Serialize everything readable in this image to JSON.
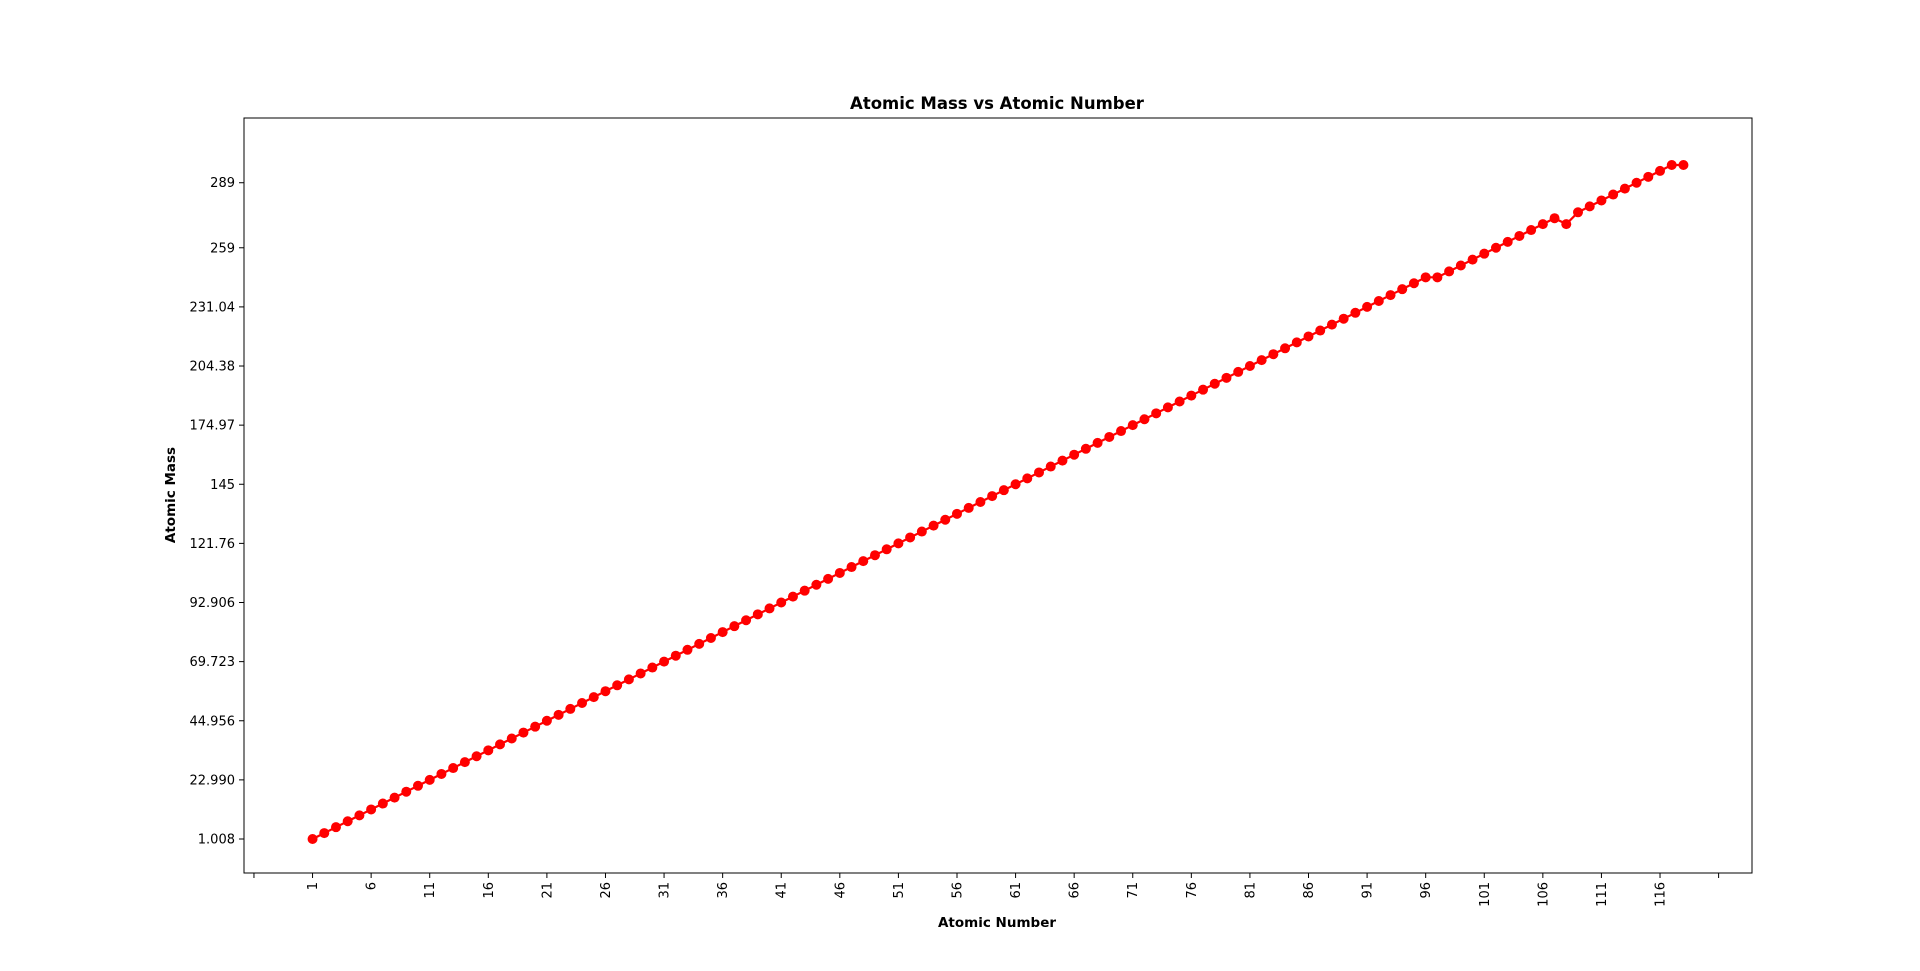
{
  "chart_data": {
    "type": "line",
    "title": "Atomic Mass vs Atomic Number",
    "xlabel": "Atomic Number",
    "ylabel": "Atomic Mass",
    "marker": "circle",
    "color": "#ff0000",
    "grid": false,
    "x": [
      1,
      2,
      3,
      4,
      5,
      6,
      7,
      8,
      9,
      10,
      11,
      12,
      13,
      14,
      15,
      16,
      17,
      18,
      19,
      20,
      21,
      22,
      23,
      24,
      25,
      26,
      27,
      28,
      29,
      30,
      31,
      32,
      33,
      34,
      35,
      36,
      37,
      38,
      39,
      40,
      41,
      42,
      43,
      44,
      45,
      46,
      47,
      48,
      49,
      50,
      51,
      52,
      53,
      54,
      55,
      56,
      57,
      58,
      59,
      60,
      61,
      62,
      63,
      64,
      65,
      66,
      67,
      68,
      69,
      70,
      71,
      72,
      73,
      74,
      75,
      76,
      77,
      78,
      79,
      80,
      81,
      82,
      83,
      84,
      85,
      86,
      87,
      88,
      89,
      90,
      91,
      92,
      93,
      94,
      95,
      96,
      97,
      98,
      99,
      100,
      101,
      102,
      103,
      104,
      105,
      106,
      107,
      108,
      109,
      110,
      111,
      112,
      113,
      114,
      115,
      116,
      117,
      118
    ],
    "y": [
      "1.008",
      "4.0026",
      "6.94",
      "9.0122",
      "10.81",
      "12.011",
      "14.007",
      "15.999",
      "18.998",
      "20.180",
      "22.990",
      "24.305",
      "26.982",
      "28.085",
      "30.974",
      "32.06",
      "35.45",
      "39.948",
      "39.098",
      "40.078",
      "44.956",
      "47.867",
      "50.942",
      "51.996",
      "54.938",
      "55.845",
      "58.933",
      "58.693",
      "63.546",
      "65.38",
      "69.723",
      "72.630",
      "74.922",
      "78.971",
      "79.904",
      "83.798",
      "85.468",
      "87.62",
      "88.906",
      "91.224",
      "92.906",
      "95.95",
      "98",
      "101.07",
      "102.91",
      "106.42",
      "107.87",
      "112.41",
      "114.82",
      "118.71",
      "121.76",
      "127.60",
      "126.90",
      "131.29",
      "132.91",
      "137.33",
      "138.91",
      "140.12",
      "140.91",
      "144.24",
      "145",
      "150.36",
      "151.96",
      "157.25",
      "158.93",
      "162.50",
      "164.93",
      "167.26",
      "168.93",
      "173.05",
      "174.97",
      "178.49",
      "180.95",
      "183.84",
      "186.21",
      "190.23",
      "192.22",
      "195.08",
      "196.97",
      "200.59",
      "204.38",
      "207.2",
      "208.98",
      "209",
      "210",
      "222",
      "223",
      "226",
      "227",
      "232.04",
      "231.04",
      "238.03",
      "237",
      "244",
      "243",
      "247",
      "247",
      "251",
      "252",
      "257",
      "258",
      "259",
      "266",
      "267",
      "268",
      "269",
      "270",
      "269",
      "278",
      "281",
      "282",
      "285",
      "286",
      "289",
      "290",
      "293",
      "294",
      "294"
    ],
    "xticks": [
      "1",
      "6",
      "11",
      "16",
      "21",
      "26",
      "31",
      "36",
      "41",
      "46",
      "51",
      "56",
      "61",
      "66",
      "71",
      "76",
      "81",
      "86",
      "91",
      "96",
      "101",
      "106",
      "111",
      "116"
    ],
    "yticks": [
      "1.008",
      "22.990",
      "44.956",
      "69.723",
      "92.906",
      "121.76",
      "145",
      "174.97",
      "204.38",
      "231.04",
      "259",
      "289"
    ],
    "xlim": [
      -4.85,
      123.85
    ]
  }
}
